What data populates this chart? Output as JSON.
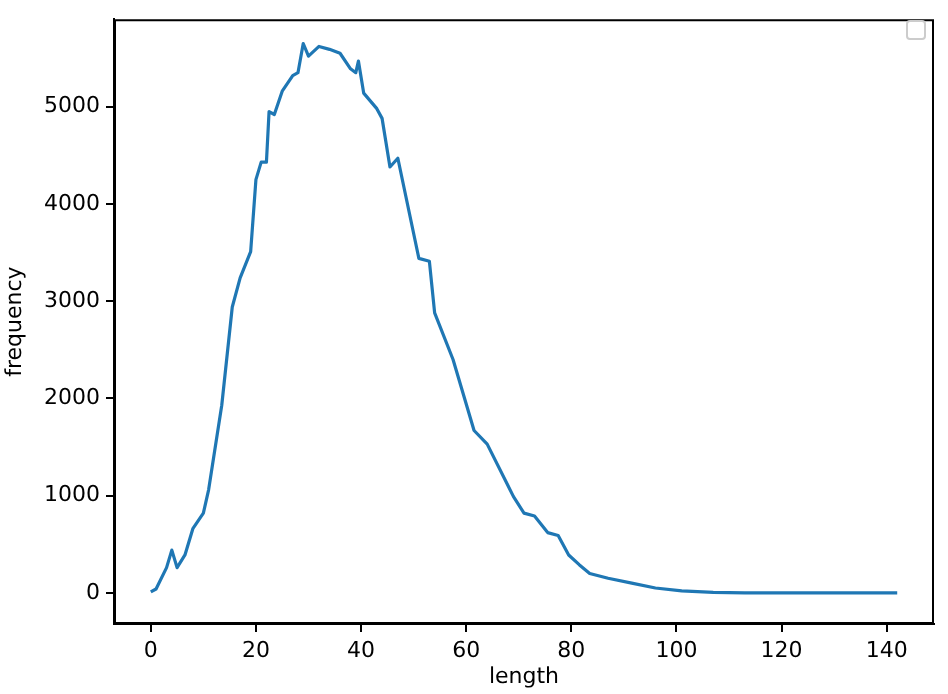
{
  "chart_data": {
    "type": "line",
    "xlabel": "length",
    "ylabel": "frequency",
    "x": [
      0,
      1,
      3,
      4,
      5,
      6.5,
      8,
      10,
      11,
      13.5,
      15.5,
      17,
      19,
      20,
      21,
      22,
      22.5,
      23.5,
      25,
      27,
      28,
      29,
      30,
      32,
      34,
      36,
      38,
      39,
      39.5,
      40.5,
      43,
      44,
      45.5,
      47,
      51,
      53,
      54,
      57.5,
      61.5,
      64,
      69,
      71,
      73,
      75.5,
      77.5,
      79.5,
      81.5,
      83.5,
      87,
      91.5,
      96,
      101,
      107,
      113,
      120,
      130,
      142
    ],
    "series": [
      {
        "color": "#1f77b4",
        "values": [
          10,
          40,
          260,
          440,
          260,
          390,
          660,
          820,
          1060,
          1930,
          2940,
          3240,
          3510,
          4250,
          4430,
          4430,
          4950,
          4920,
          5160,
          5320,
          5350,
          5650,
          5520,
          5620,
          5590,
          5550,
          5390,
          5350,
          5470,
          5140,
          4980,
          4880,
          4380,
          4470,
          3440,
          3410,
          2880,
          2400,
          1670,
          1530,
          990,
          820,
          790,
          620,
          590,
          390,
          290,
          200,
          150,
          100,
          50,
          20,
          6,
          0,
          0,
          0,
          0
        ]
      }
    ],
    "xlim": [
      -7,
      149
    ],
    "ylim": [
      -320,
      5900
    ],
    "xticks": [
      0,
      20,
      40,
      60,
      80,
      100,
      120,
      140
    ],
    "yticks": [
      0,
      1000,
      2000,
      3000,
      4000,
      5000
    ],
    "grid": false,
    "marker": "none",
    "line_style": "solid"
  }
}
